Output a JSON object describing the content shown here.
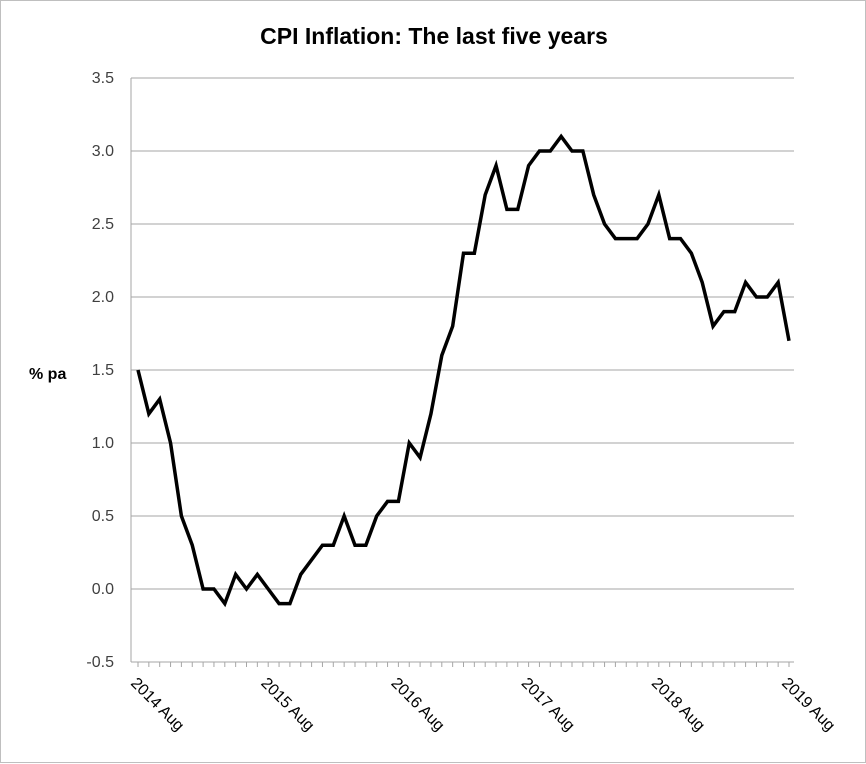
{
  "chart_data": {
    "type": "line",
    "title": "CPI Inflation: The last five years",
    "ylabel": "% pa",
    "xlabel": "",
    "ylim": [
      -0.5,
      3.5
    ],
    "yticks": [
      "-0.5",
      "0.0",
      "0.5",
      "1.0",
      "1.5",
      "2.0",
      "2.5",
      "3.0",
      "3.5"
    ],
    "xticks": [
      "2014 Aug",
      "2015 Aug",
      "2016 Aug",
      "2017 Aug",
      "2018 Aug",
      "2019 Aug"
    ],
    "grid": true,
    "line_color": "#000000",
    "series": [
      {
        "x": [
          "2014 Aug",
          "2014 Sep",
          "2014 Oct",
          "2014 Nov",
          "2014 Dec",
          "2015 Jan",
          "2015 Feb",
          "2015 Mar",
          "2015 Apr",
          "2015 May",
          "2015 Jun",
          "2015 Jul",
          "2015 Aug",
          "2015 Sep",
          "2015 Oct",
          "2015 Nov",
          "2015 Dec",
          "2016 Jan",
          "2016 Feb",
          "2016 Mar",
          "2016 Apr",
          "2016 May",
          "2016 Jun",
          "2016 Jul",
          "2016 Aug",
          "2016 Sep",
          "2016 Oct",
          "2016 Nov",
          "2016 Dec",
          "2017 Jan",
          "2017 Feb",
          "2017 Mar",
          "2017 Apr",
          "2017 May",
          "2017 Jun",
          "2017 Jul",
          "2017 Aug",
          "2017 Sep",
          "2017 Oct",
          "2017 Nov",
          "2017 Dec",
          "2018 Jan",
          "2018 Feb",
          "2018 Mar",
          "2018 Apr",
          "2018 May",
          "2018 Jun",
          "2018 Jul",
          "2018 Aug",
          "2018 Sep",
          "2018 Oct",
          "2018 Nov",
          "2018 Dec",
          "2019 Jan",
          "2019 Feb",
          "2019 Mar",
          "2019 Apr",
          "2019 May",
          "2019 Jun",
          "2019 Jul",
          "2019 Aug"
        ],
        "values": [
          1.5,
          1.2,
          1.3,
          1.0,
          0.5,
          0.3,
          0.0,
          0.0,
          -0.1,
          0.1,
          0.0,
          0.1,
          0.0,
          -0.1,
          -0.1,
          0.1,
          0.2,
          0.3,
          0.3,
          0.5,
          0.3,
          0.3,
          0.5,
          0.6,
          0.6,
          1.0,
          0.9,
          1.2,
          1.6,
          1.8,
          2.3,
          2.3,
          2.7,
          2.9,
          2.6,
          2.6,
          2.9,
          3.0,
          3.0,
          3.1,
          3.0,
          3.0,
          2.7,
          2.5,
          2.4,
          2.4,
          2.4,
          2.5,
          2.7,
          2.4,
          2.4,
          2.3,
          2.1,
          1.8,
          1.9,
          1.9,
          2.1,
          2.0,
          2.0,
          2.1,
          1.7
        ]
      }
    ]
  }
}
